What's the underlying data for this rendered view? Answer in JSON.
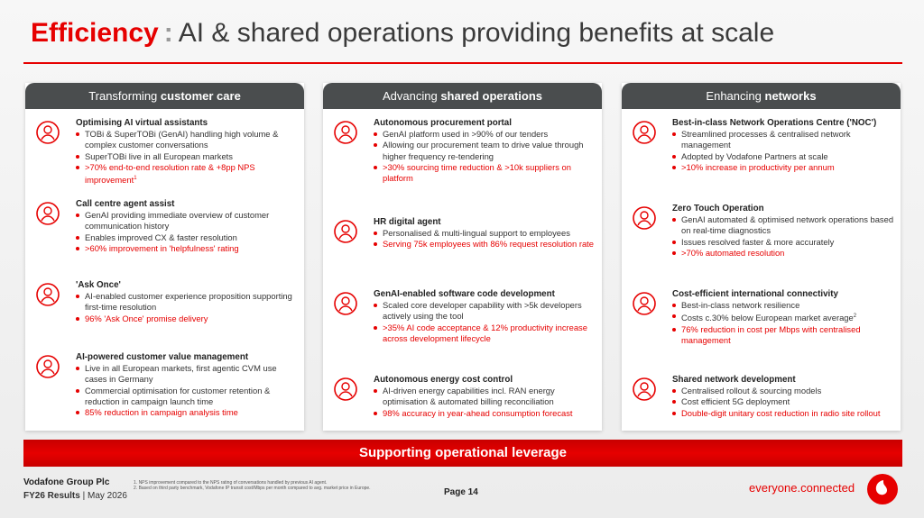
{
  "header": {
    "title_highlight": "Efficiency",
    "separator": ":",
    "title": "AI & shared operations providing benefits at scale"
  },
  "columns": [
    {
      "heading_prefix": "Transforming",
      "heading_bold": "customer care",
      "items": [
        {
          "title": "Optimising AI virtual assistants",
          "bullets": [
            {
              "text": "TOBi & SuperTOBi (GenAI) handling high volume & complex customer conversations"
            },
            {
              "text": "SuperTOBi live in all European markets"
            },
            {
              "text": ">70% end-to-end resolution rate & +8pp NPS improvement",
              "sup": "1",
              "highlight": true
            }
          ]
        },
        {
          "title": "Call centre agent assist",
          "bullets": [
            {
              "text": "GenAI providing immediate overview of customer communication history"
            },
            {
              "text": "Enables improved CX & faster resolution"
            },
            {
              "text": ">60% improvement in 'helpfulness' rating",
              "highlight": true
            }
          ]
        },
        {
          "title": "'Ask Once'",
          "bullets": [
            {
              "text": "AI-enabled customer experience proposition supporting first-time resolution"
            },
            {
              "text": "96% 'Ask Once' promise delivery",
              "highlight": true
            }
          ]
        },
        {
          "title": "AI-powered customer value management",
          "bullets": [
            {
              "text": "Live in all European markets, first agentic CVM use cases in Germany"
            },
            {
              "text": "Commercial optimisation for customer retention & reduction in campaign launch time"
            },
            {
              "text": "85% reduction in campaign analysis time",
              "highlight": true
            }
          ]
        }
      ]
    },
    {
      "heading_prefix": "Advancing",
      "heading_bold": "shared operations",
      "items": [
        {
          "title": "Autonomous procurement portal",
          "bullets": [
            {
              "text": "GenAI platform used in >90% of our tenders"
            },
            {
              "text": "Allowing our procurement team to drive value through higher frequency re-tendering"
            },
            {
              "text": ">30% sourcing time reduction & >10k suppliers on platform",
              "highlight": true
            }
          ]
        },
        {
          "title": "HR digital agent",
          "bullets": [
            {
              "text": "Personalised & multi-lingual support to employees"
            },
            {
              "text": "Serving 75k employees with 86% request resolution rate",
              "highlight": true
            }
          ]
        },
        {
          "title": "GenAI-enabled software code development",
          "bullets": [
            {
              "text": "Scaled core developer capability with >5k developers actively using the tool"
            },
            {
              "text": ">35% AI code acceptance & 12% productivity increase across development lifecycle",
              "highlight": true
            }
          ]
        },
        {
          "title": "Autonomous energy cost control",
          "bullets": [
            {
              "text": "AI-driven energy capabilities incl. RAN energy optimisation & automated billing reconciliation"
            },
            {
              "text": "98% accuracy in year-ahead consumption forecast",
              "highlight": true
            }
          ]
        }
      ]
    },
    {
      "heading_prefix": "Enhancing",
      "heading_bold": "networks",
      "items": [
        {
          "title": "Best-in-class Network Operations Centre ('NOC')",
          "bullets": [
            {
              "text": "Streamlined processes & centralised network management"
            },
            {
              "text": "Adopted by Vodafone Partners at scale"
            },
            {
              "text": ">10% increase in productivity per annum",
              "highlight": true
            }
          ]
        },
        {
          "title": "Zero Touch Operation",
          "bullets": [
            {
              "text": "GenAI automated & optimised network operations based on real-time diagnostics"
            },
            {
              "text": "Issues resolved faster & more accurately"
            },
            {
              "text": ">70% automated resolution",
              "highlight": true
            }
          ]
        },
        {
          "title": "Cost-efficient international connectivity",
          "bullets": [
            {
              "text": "Best-in-class network resilience"
            },
            {
              "text": "Costs c.30% below European market average",
              "sup": "2"
            },
            {
              "text": "76% reduction in cost per Mbps with centralised management",
              "highlight": true
            }
          ]
        },
        {
          "title": "Shared network development",
          "bullets": [
            {
              "text": "Centralised rollout & sourcing models"
            },
            {
              "text": "Cost efficient 5G deployment"
            },
            {
              "text": "Double-digit unitary cost reduction in radio site rollout",
              "highlight": true
            }
          ]
        }
      ]
    }
  ],
  "banner": "Supporting operational leverage",
  "footer": {
    "company": "Vodafone Group Plc",
    "results": "FY26 Results",
    "separator": "|",
    "date": "May 2026",
    "footnotes": [
      {
        "number": "1.",
        "text": "NPS improvement compared to the NPS rating of conversations handled by previous AI agent."
      },
      {
        "number": "2.",
        "text": "Based on third party benchmark, Vodafone IP transit cost/Mbps per month compared to avg. market price in Europe."
      }
    ],
    "page": "Page 14",
    "tagline": "everyone.connected"
  }
}
